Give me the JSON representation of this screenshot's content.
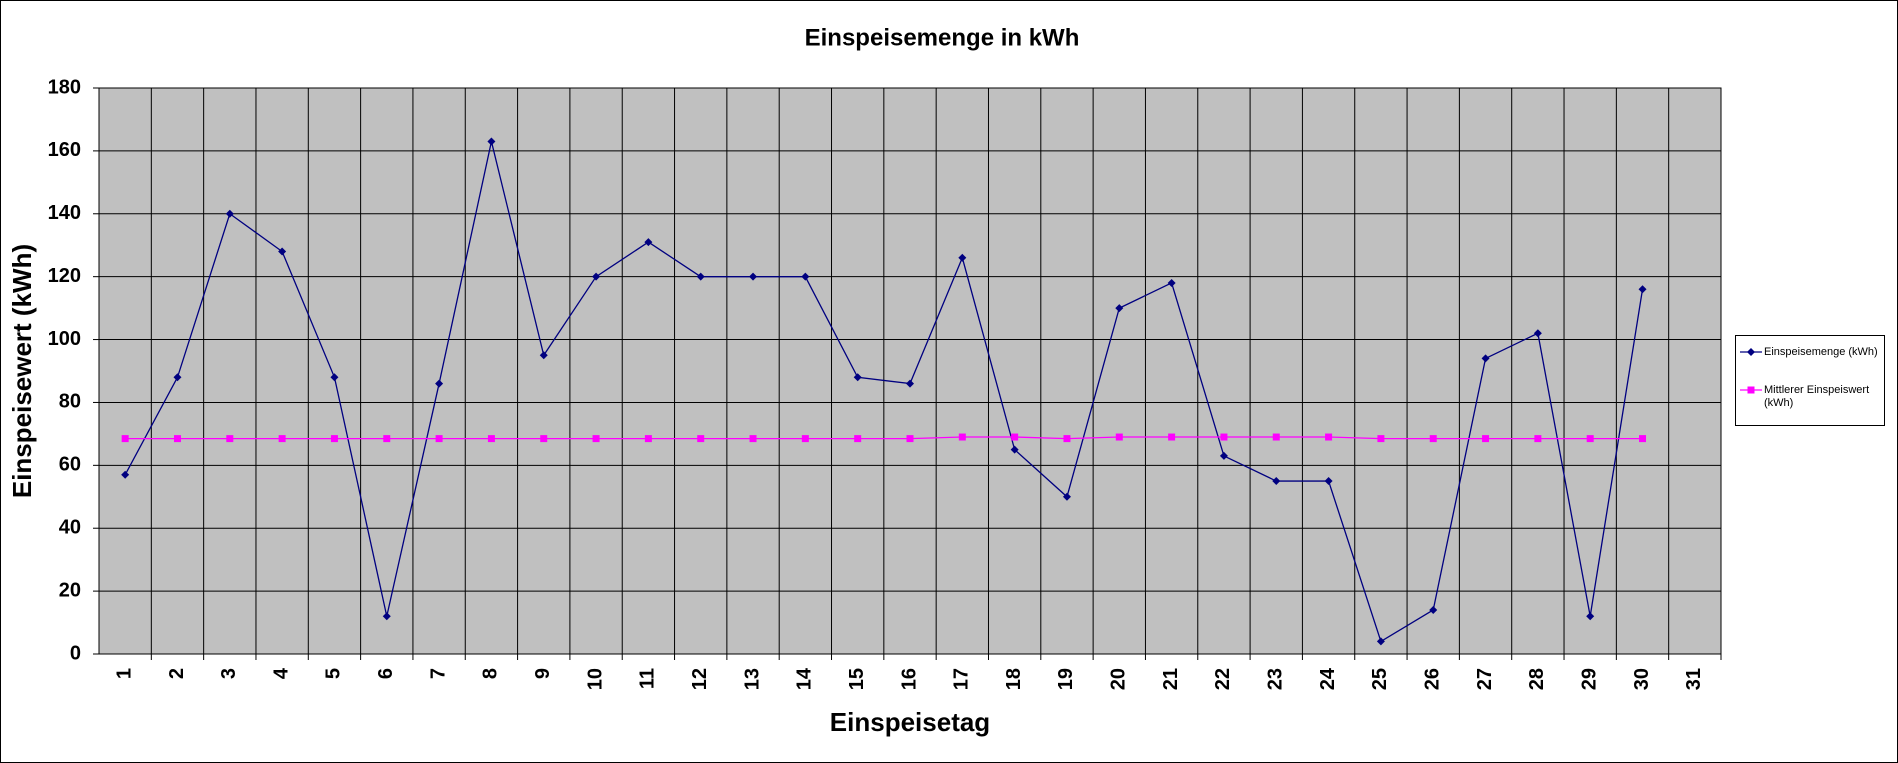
{
  "chart_data": {
    "type": "line",
    "title": "Einspeisemenge in kWh",
    "x_label": "Einspeisetag",
    "y_label": "Einspeisewert  (kWh)",
    "categories": [
      "1",
      "2",
      "3",
      "4",
      "5",
      "6",
      "7",
      "8",
      "9",
      "10",
      "11",
      "12",
      "13",
      "14",
      "15",
      "16",
      "17",
      "18",
      "19",
      "20",
      "21",
      "22",
      "23",
      "24",
      "25",
      "26",
      "27",
      "28",
      "29",
      "30",
      "31"
    ],
    "series": [
      {
        "name": "Einspeisemenge (kWh)",
        "color": "#000080",
        "marker": "diamond",
        "values": [
          57,
          88,
          140,
          128,
          88,
          12,
          86,
          163,
          95,
          120,
          131,
          120,
          120,
          120,
          88,
          86,
          126,
          65,
          50,
          110,
          118,
          63,
          55,
          55,
          4,
          14,
          94,
          102,
          12,
          116,
          null
        ]
      },
      {
        "name": "Mittlerer Einspeiswert (kWh)",
        "color": "#ff00ff",
        "marker": "square",
        "values": [
          68.5,
          68.5,
          68.5,
          68.5,
          68.5,
          68.5,
          68.5,
          68.5,
          68.5,
          68.5,
          68.5,
          68.5,
          68.5,
          68.5,
          68.5,
          68.5,
          69,
          69,
          68.5,
          69,
          69,
          69,
          69,
          69,
          68.5,
          68.5,
          68.5,
          68.5,
          68.5,
          68.5,
          null
        ]
      }
    ],
    "ylim": [
      0,
      180
    ],
    "yticks": [
      0,
      20,
      40,
      60,
      80,
      100,
      120,
      140,
      160,
      180
    ],
    "grid": true,
    "plot_background": "#c0c0c0",
    "legend": "right"
  }
}
